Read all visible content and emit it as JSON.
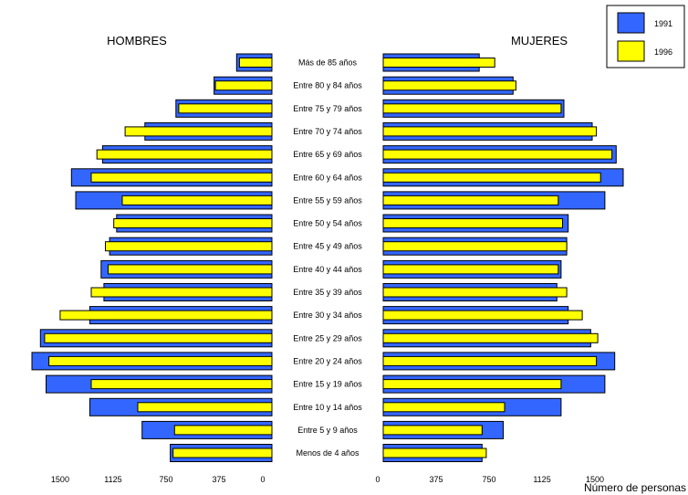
{
  "chart_data": {
    "type": "bar",
    "orientation": "horizontal",
    "layout": "population-pyramid",
    "left_title": "HOMBRES",
    "right_title": "MUJERES",
    "xlabel": "Número de personas",
    "categories": [
      "Más de 85 años",
      "Entre 80 y 84 años",
      "Entre 75 y 79 años",
      "Entre 70 y 74 años",
      "Entre 65 y 69 años",
      "Entre 60 y 64 años",
      "Entre 55 y 59 años",
      "Entre 50 y 54 años",
      "Entre 45 y 49 años",
      "Entre 40 y 44 años",
      "Entre 35 y 39 años",
      "Entre 30 y 34 años",
      "Entre 25 y 29 años",
      "Entre 20 y 24 años",
      "Entre 15 y 19 años",
      "Entre 10 y 14 años",
      "Entre 5 y 9 años",
      "Menos de 4 años"
    ],
    "series": [
      {
        "name": "1991",
        "color": "#3366ff",
        "hombres": [
          250,
          410,
          680,
          900,
          1200,
          1420,
          1390,
          1100,
          1150,
          1210,
          1190,
          1290,
          1640,
          1700,
          1600,
          1290,
          920,
          720
        ],
        "mujeres": [
          680,
          920,
          1280,
          1480,
          1650,
          1700,
          1570,
          1310,
          1300,
          1260,
          1230,
          1310,
          1470,
          1640,
          1570,
          1260,
          850,
          700
        ]
      },
      {
        "name": "1996",
        "color": "#ffff00",
        "hombres": [
          230,
          400,
          660,
          1040,
          1240,
          1280,
          1060,
          1120,
          1180,
          1160,
          1280,
          1500,
          1610,
          1580,
          1280,
          950,
          690,
          700
        ],
        "mujeres": [
          790,
          940,
          1260,
          1510,
          1620,
          1540,
          1240,
          1270,
          1300,
          1240,
          1300,
          1410,
          1520,
          1510,
          1260,
          860,
          700,
          730
        ]
      }
    ],
    "ticks": {
      "left": [
        1500,
        1125,
        750,
        375,
        0
      ],
      "right": [
        0,
        375,
        750,
        1125,
        1500
      ]
    },
    "xlim": [
      0,
      1700
    ],
    "legend": "top-right"
  }
}
